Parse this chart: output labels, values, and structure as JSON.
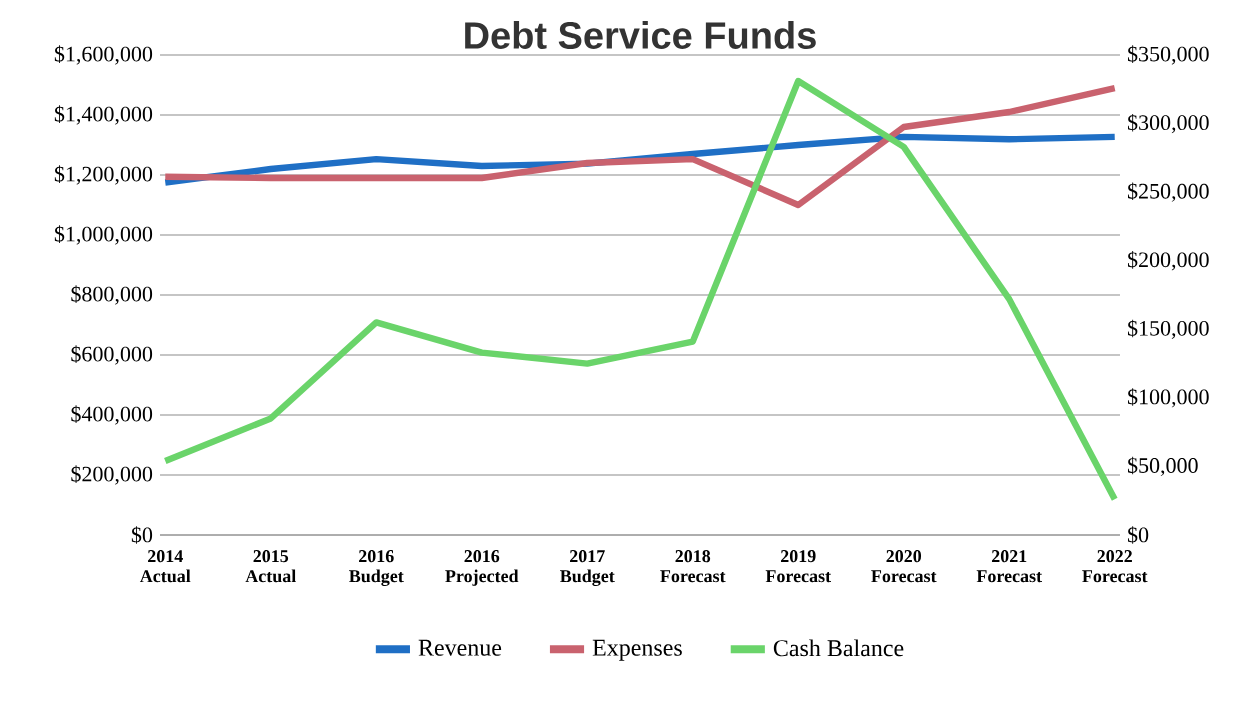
{
  "chart_data": {
    "type": "line",
    "title": "Debt Service Funds",
    "categories": [
      "2014 Actual",
      "2015 Actual",
      "2016 Budget",
      "2016 Projected",
      "2017 Budget",
      "2018 Forecast",
      "2019 Forecast",
      "2020 Forecast",
      "2021 Forecast",
      "2022 Forecast"
    ],
    "series": [
      {
        "name": "Revenue",
        "color": "#1f6fc5",
        "values": [
          1175000,
          1220000,
          1253000,
          1230000,
          1238000,
          1270000,
          1300000,
          1327000,
          1319000,
          1327000
        ]
      },
      {
        "name": "Expenses",
        "color": "#c9626e",
        "values": [
          1194000,
          1190000,
          1190000,
          1190000,
          1240000,
          1253000,
          1100000,
          1360000,
          1410000,
          1490000
        ]
      },
      {
        "name": "Cash Balance",
        "color": "#6ad46a",
        "axis": "y2",
        "values": [
          54000,
          85000,
          155000,
          133000,
          125000,
          141000,
          331000,
          283000,
          172000,
          26000
        ]
      }
    ],
    "ylim": [
      0,
      1600000
    ],
    "yticks": [
      {
        "value": 0,
        "label": "$0"
      },
      {
        "value": 200000,
        "label": "$200,000"
      },
      {
        "value": 400000,
        "label": "$400,000"
      },
      {
        "value": 600000,
        "label": "$600,000"
      },
      {
        "value": 800000,
        "label": "$800,000"
      },
      {
        "value": 1000000,
        "label": "$1,000,000"
      },
      {
        "value": 1200000,
        "label": "$1,200,000"
      },
      {
        "value": 1400000,
        "label": "$1,400,000"
      },
      {
        "value": 1600000,
        "label": "$1,600,000"
      }
    ],
    "y2lim": [
      0,
      350000
    ],
    "y2ticks": [
      {
        "value": 0,
        "label": "$0"
      },
      {
        "value": 50000,
        "label": "$50,000"
      },
      {
        "value": 100000,
        "label": "$100,000"
      },
      {
        "value": 150000,
        "label": "$150,000"
      },
      {
        "value": 200000,
        "label": "$200,000"
      },
      {
        "value": 250000,
        "label": "$250,000"
      },
      {
        "value": 300000,
        "label": "$300,000"
      },
      {
        "value": 350000,
        "label": "$350,000"
      }
    ],
    "grid": "y",
    "legend": "bottom",
    "marker": "none",
    "line_style": "solid"
  }
}
